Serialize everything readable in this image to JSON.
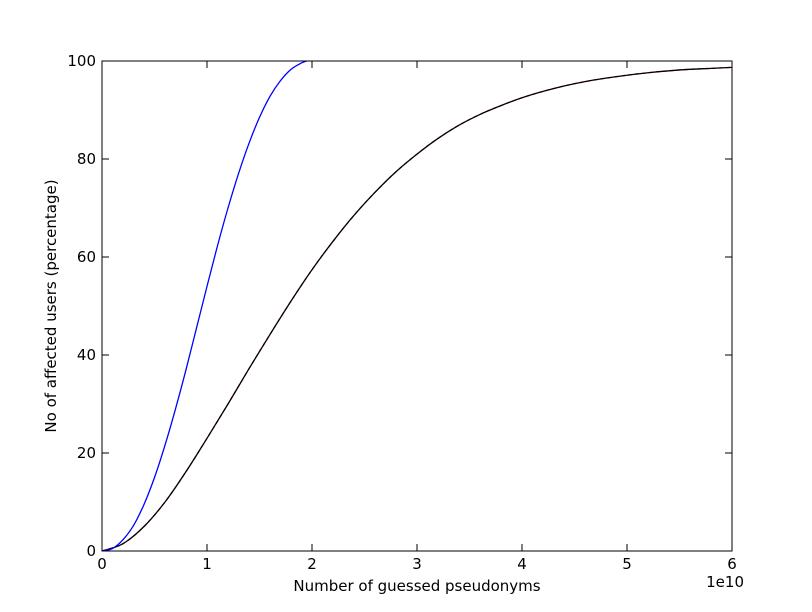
{
  "chart_data": {
    "type": "line",
    "title": "",
    "xlabel": "Number of guessed pseudonyms",
    "ylabel": "No of affected users (percentage)",
    "x_offset_label": "1e10",
    "xlim": [
      0,
      6
    ],
    "ylim": [
      0,
      100
    ],
    "x_ticks": [
      0,
      1,
      2,
      3,
      4,
      5,
      6
    ],
    "x_tick_labels": [
      "0",
      "1",
      "2",
      "3",
      "4",
      "5",
      "6"
    ],
    "y_ticks": [
      0,
      20,
      40,
      60,
      80,
      100
    ],
    "y_tick_labels": [
      "0",
      "20",
      "40",
      "60",
      "80",
      "100"
    ],
    "grid": false,
    "series": [
      {
        "color": "#0000ff",
        "x": [
          0,
          0.1,
          0.2,
          0.3,
          0.4,
          0.5,
          0.6,
          0.7,
          0.8,
          0.9,
          1.0,
          1.1,
          1.2,
          1.3,
          1.4,
          1.5,
          1.6,
          1.7,
          1.8,
          1.9,
          1.95
        ],
        "y": [
          0,
          0.5,
          2.3,
          5.2,
          9.5,
          15.0,
          21.6,
          29.0,
          37.0,
          45.5,
          54.0,
          62.3,
          70.0,
          77.0,
          83.2,
          88.5,
          92.8,
          96.0,
          98.3,
          99.6,
          100
        ]
      },
      {
        "color": "#000000",
        "x": [
          0,
          0.2,
          0.4,
          0.6,
          0.8,
          1.0,
          1.2,
          1.4,
          1.6,
          1.8,
          2.0,
          2.2,
          2.4,
          2.6,
          2.8,
          3.0,
          3.2,
          3.4,
          3.6,
          3.8,
          4.0,
          4.2,
          4.4,
          4.6,
          4.8,
          5.0,
          5.2,
          5.4,
          5.6,
          5.8,
          6.0
        ],
        "y": [
          0,
          1.5,
          5.0,
          10.0,
          16.2,
          23.0,
          30.0,
          37.2,
          44.2,
          51.0,
          57.4,
          63.2,
          68.5,
          73.2,
          77.4,
          81.0,
          84.2,
          86.9,
          89.1,
          90.9,
          92.5,
          93.8,
          94.9,
          95.8,
          96.5,
          97.1,
          97.6,
          98.0,
          98.3,
          98.5,
          98.7
        ]
      },
      {
        "color": "#ff0000",
        "x": [
          0,
          0.2,
          0.4,
          0.6,
          0.8,
          1.0,
          1.2,
          1.4,
          1.6,
          1.8,
          2.0,
          2.2,
          2.4,
          2.6,
          2.8,
          3.0,
          3.2,
          3.4,
          3.6,
          3.8,
          4.0,
          4.2,
          4.4,
          4.6,
          4.8,
          5.0,
          5.2,
          5.4,
          5.6,
          5.8,
          6.0
        ],
        "y": [
          0,
          1.5,
          5.0,
          10.0,
          16.2,
          23.0,
          30.0,
          37.2,
          44.2,
          51.0,
          57.4,
          63.2,
          68.5,
          73.2,
          77.4,
          81.0,
          84.2,
          86.9,
          89.1,
          90.9,
          92.5,
          93.8,
          94.9,
          95.8,
          96.5,
          97.1,
          97.6,
          98.0,
          98.3,
          98.5,
          98.7
        ]
      }
    ]
  }
}
